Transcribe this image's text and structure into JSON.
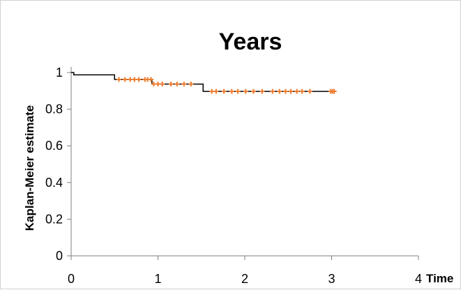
{
  "chart_data": {
    "type": "line",
    "title": "Years",
    "xlabel": "Time",
    "ylabel": "Kaplan-Meier estimate",
    "xlim": [
      0,
      4
    ],
    "ylim": [
      0,
      1
    ],
    "x_ticks": [
      "0",
      "1",
      "2",
      "3",
      "4"
    ],
    "y_ticks": [
      "0",
      "0.2",
      "0.4",
      "0.6",
      "0.8",
      "1"
    ],
    "grid": false,
    "legend": "none",
    "series": [
      {
        "kind": "step",
        "color": "#000000",
        "points": [
          {
            "x": 0,
            "y": 1.0
          },
          {
            "x": 0.03,
            "y": 0.987
          },
          {
            "x": 0.5,
            "y": 0.962
          },
          {
            "x": 0.93,
            "y": 0.937
          },
          {
            "x": 1.52,
            "y": 0.897
          },
          {
            "x": 3.05,
            "y": 0.897
          }
        ]
      },
      {
        "kind": "censored",
        "color": "#ED7D31",
        "points": [
          {
            "x": 0.55,
            "y": 0.962
          },
          {
            "x": 0.62,
            "y": 0.962
          },
          {
            "x": 0.68,
            "y": 0.962
          },
          {
            "x": 0.73,
            "y": 0.962
          },
          {
            "x": 0.78,
            "y": 0.962
          },
          {
            "x": 0.85,
            "y": 0.962
          },
          {
            "x": 0.88,
            "y": 0.962
          },
          {
            "x": 0.92,
            "y": 0.962
          },
          {
            "x": 0.95,
            "y": 0.937
          },
          {
            "x": 1.0,
            "y": 0.937
          },
          {
            "x": 1.05,
            "y": 0.937
          },
          {
            "x": 1.15,
            "y": 0.937
          },
          {
            "x": 1.22,
            "y": 0.937
          },
          {
            "x": 1.3,
            "y": 0.937
          },
          {
            "x": 1.38,
            "y": 0.937
          },
          {
            "x": 1.62,
            "y": 0.897
          },
          {
            "x": 1.67,
            "y": 0.897
          },
          {
            "x": 1.76,
            "y": 0.897
          },
          {
            "x": 1.85,
            "y": 0.897
          },
          {
            "x": 1.92,
            "y": 0.897
          },
          {
            "x": 2.01,
            "y": 0.897
          },
          {
            "x": 2.1,
            "y": 0.897
          },
          {
            "x": 2.2,
            "y": 0.897
          },
          {
            "x": 2.32,
            "y": 0.897
          },
          {
            "x": 2.4,
            "y": 0.897
          },
          {
            "x": 2.47,
            "y": 0.897
          },
          {
            "x": 2.53,
            "y": 0.897
          },
          {
            "x": 2.6,
            "y": 0.897
          },
          {
            "x": 2.66,
            "y": 0.897
          },
          {
            "x": 2.75,
            "y": 0.897
          },
          {
            "x": 2.99,
            "y": 0.897
          },
          {
            "x": 3.01,
            "y": 0.897
          },
          {
            "x": 3.03,
            "y": 0.897
          }
        ]
      }
    ]
  }
}
